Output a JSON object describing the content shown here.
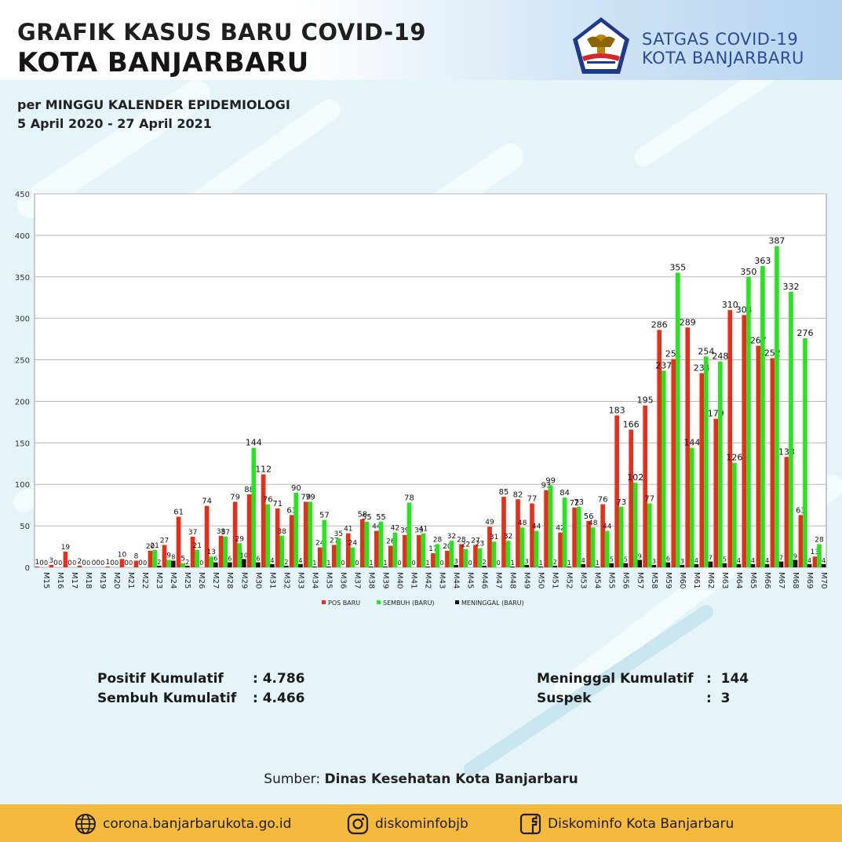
{
  "header": {
    "title_line1": "GRAFIK KASUS BARU COVID-19",
    "title_line2": "KOTA BANJARBARU",
    "org_line1": "SATGAS COVID-19",
    "org_line2": "KOTA BANJARBARU",
    "logo_icon": "satgas-garuda-logo-icon",
    "subtitle_line1": "per MINGGU KALENDER EPIDEMIOLOGI",
    "subtitle_line2": "5 April 2020 - 27 April 2021"
  },
  "colors": {
    "pos_baru": "#ee2b16",
    "sembuh": "#22e81a",
    "meninggal": "#111111",
    "footer_bg": "#f5b93e",
    "org_text": "#2e4a94"
  },
  "chart_data": {
    "type": "bar",
    "ylim": [
      0,
      450
    ],
    "yticks": [
      0,
      50,
      100,
      150,
      200,
      250,
      300,
      350,
      400,
      450
    ],
    "grid": true,
    "legend_position": "bottom",
    "categories": [
      "M15",
      "M16",
      "M17",
      "M18",
      "M19",
      "M20",
      "M21",
      "M22",
      "M23",
      "M24",
      "M25",
      "M26",
      "M27",
      "M28",
      "M29",
      "M30",
      "M31",
      "M32",
      "M33",
      "M34",
      "M35",
      "M36",
      "M37",
      "M38",
      "M39",
      "M40",
      "M41",
      "M42",
      "M43",
      "M44",
      "M45",
      "M46",
      "M47",
      "M48",
      "M49",
      "M50",
      "M51",
      "M52",
      "M53",
      "M54",
      "M55",
      "M56",
      "M57",
      "M58",
      "M59",
      "M60",
      "M61",
      "M62",
      "M63",
      "M64",
      "M65",
      "M66",
      "M67",
      "M68",
      "M69",
      "M70"
    ],
    "series": [
      {
        "name": "POS BARU",
        "values": [
          1,
          3,
          19,
          2,
          0,
          1,
          10,
          8,
          20,
          27,
          61,
          37,
          74,
          38,
          79,
          88,
          112,
          71,
          63,
          79,
          24,
          27,
          41,
          58,
          44,
          26,
          39,
          39,
          17,
          20,
          28,
          27,
          49,
          85,
          82,
          77,
          93,
          42,
          72,
          56,
          76,
          183,
          166,
          195,
          286,
          251,
          289,
          234,
          179,
          310,
          304,
          267,
          252,
          133,
          63,
          13
        ]
      },
      {
        "name": "SEMBUH (BARU)",
        "values": [
          0,
          0,
          0,
          0,
          0,
          0,
          0,
          0,
          21,
          9,
          5,
          21,
          13,
          37,
          29,
          144,
          76,
          38,
          90,
          79,
          57,
          35,
          24,
          55,
          55,
          42,
          78,
          41,
          28,
          32,
          22,
          23,
          31,
          32,
          48,
          44,
          99,
          84,
          73,
          48,
          44,
          73,
          102,
          77,
          237,
          355,
          144,
          254,
          248,
          126,
          350,
          363,
          387,
          332,
          276,
          28
        ]
      },
      {
        "name": "MENINGGAL (BARU)",
        "values": [
          0,
          0,
          0,
          0,
          0,
          0,
          0,
          0,
          2,
          8,
          2,
          0,
          6,
          6,
          10,
          6,
          4,
          2,
          4,
          1,
          1,
          0,
          0,
          1,
          1,
          0,
          0,
          1,
          0,
          3,
          0,
          2,
          0,
          1,
          3,
          1,
          2,
          1,
          4,
          1,
          5,
          5,
          9,
          3,
          6,
          3,
          4,
          7,
          5,
          4,
          4,
          4,
          7,
          9,
          4,
          4
        ]
      }
    ]
  },
  "stats": {
    "positif_label": "Positif Kumulatif",
    "positif_value": ": 4.786",
    "sembuh_label": "Sembuh Kumulatif",
    "sembuh_value": ": 4.466",
    "meninggal_label": "Meninggal Kumulatif",
    "meninggal_value": ":  144",
    "suspek_label": "Suspek",
    "suspek_value": ":  3"
  },
  "source": {
    "prefix": "Sumber: ",
    "name": "Dinas Kesehatan Kota Banjarbaru"
  },
  "footer": {
    "website": "corona.banjarbarukota.go.id",
    "website_icon": "globe-icon",
    "instagram": "diskominfobjb",
    "instagram_icon": "instagram-icon",
    "facebook": "Diskominfo Kota Banjarbaru",
    "facebook_icon": "facebook-icon"
  }
}
